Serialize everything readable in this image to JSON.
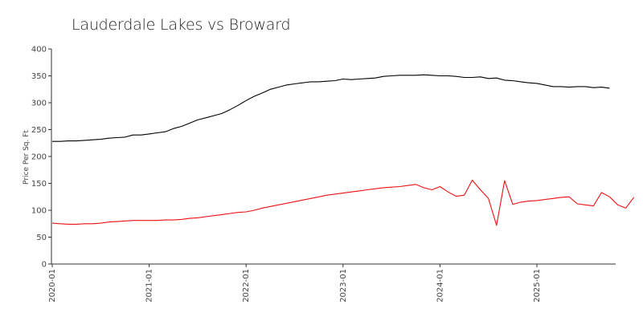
{
  "chart_data": {
    "type": "line",
    "title": "Lauderdale Lakes vs Broward",
    "ylabel": "Price Per Sq. Ft",
    "xlabel": "",
    "ylim": [
      0,
      400
    ],
    "yticks": [
      0,
      50,
      100,
      150,
      200,
      250,
      300,
      350,
      400
    ],
    "xtick_labels": [
      "2020-01",
      "2021-01",
      "2022-01",
      "2023-01",
      "2024-01",
      "2025-01"
    ],
    "x_start": "2020-01",
    "grid": false,
    "legend": "none",
    "series": [
      {
        "color": "#000000",
        "values": [
          228,
          228,
          229,
          229,
          230,
          231,
          232,
          234,
          235,
          236,
          240,
          240,
          242,
          244,
          246,
          252,
          256,
          262,
          268,
          272,
          276,
          280,
          287,
          295,
          304,
          312,
          318,
          325,
          329,
          333,
          335,
          337,
          339,
          339,
          340,
          341,
          344,
          343,
          344,
          345,
          346,
          349,
          350,
          351,
          351,
          351,
          352,
          351,
          350,
          350,
          349,
          347,
          347,
          348,
          345,
          346,
          342,
          341,
          339,
          337,
          336,
          333,
          330,
          330,
          329,
          330,
          330,
          328,
          329,
          327
        ]
      },
      {
        "color": "#ee1111",
        "values": [
          76,
          75,
          74,
          74,
          75,
          75,
          76,
          78,
          79,
          80,
          81,
          81,
          81,
          81,
          82,
          82,
          83,
          85,
          86,
          88,
          90,
          92,
          94,
          96,
          97,
          100,
          104,
          107,
          110,
          113,
          116,
          119,
          122,
          125,
          128,
          130,
          132,
          134,
          136,
          138,
          140,
          142,
          143,
          144,
          146,
          148,
          142,
          138,
          144,
          134,
          126,
          128,
          156,
          138,
          122,
          72,
          155,
          111,
          115,
          117,
          118,
          120,
          122,
          124,
          125,
          112,
          110,
          108,
          133,
          125,
          110,
          104,
          124
        ]
      }
    ]
  }
}
